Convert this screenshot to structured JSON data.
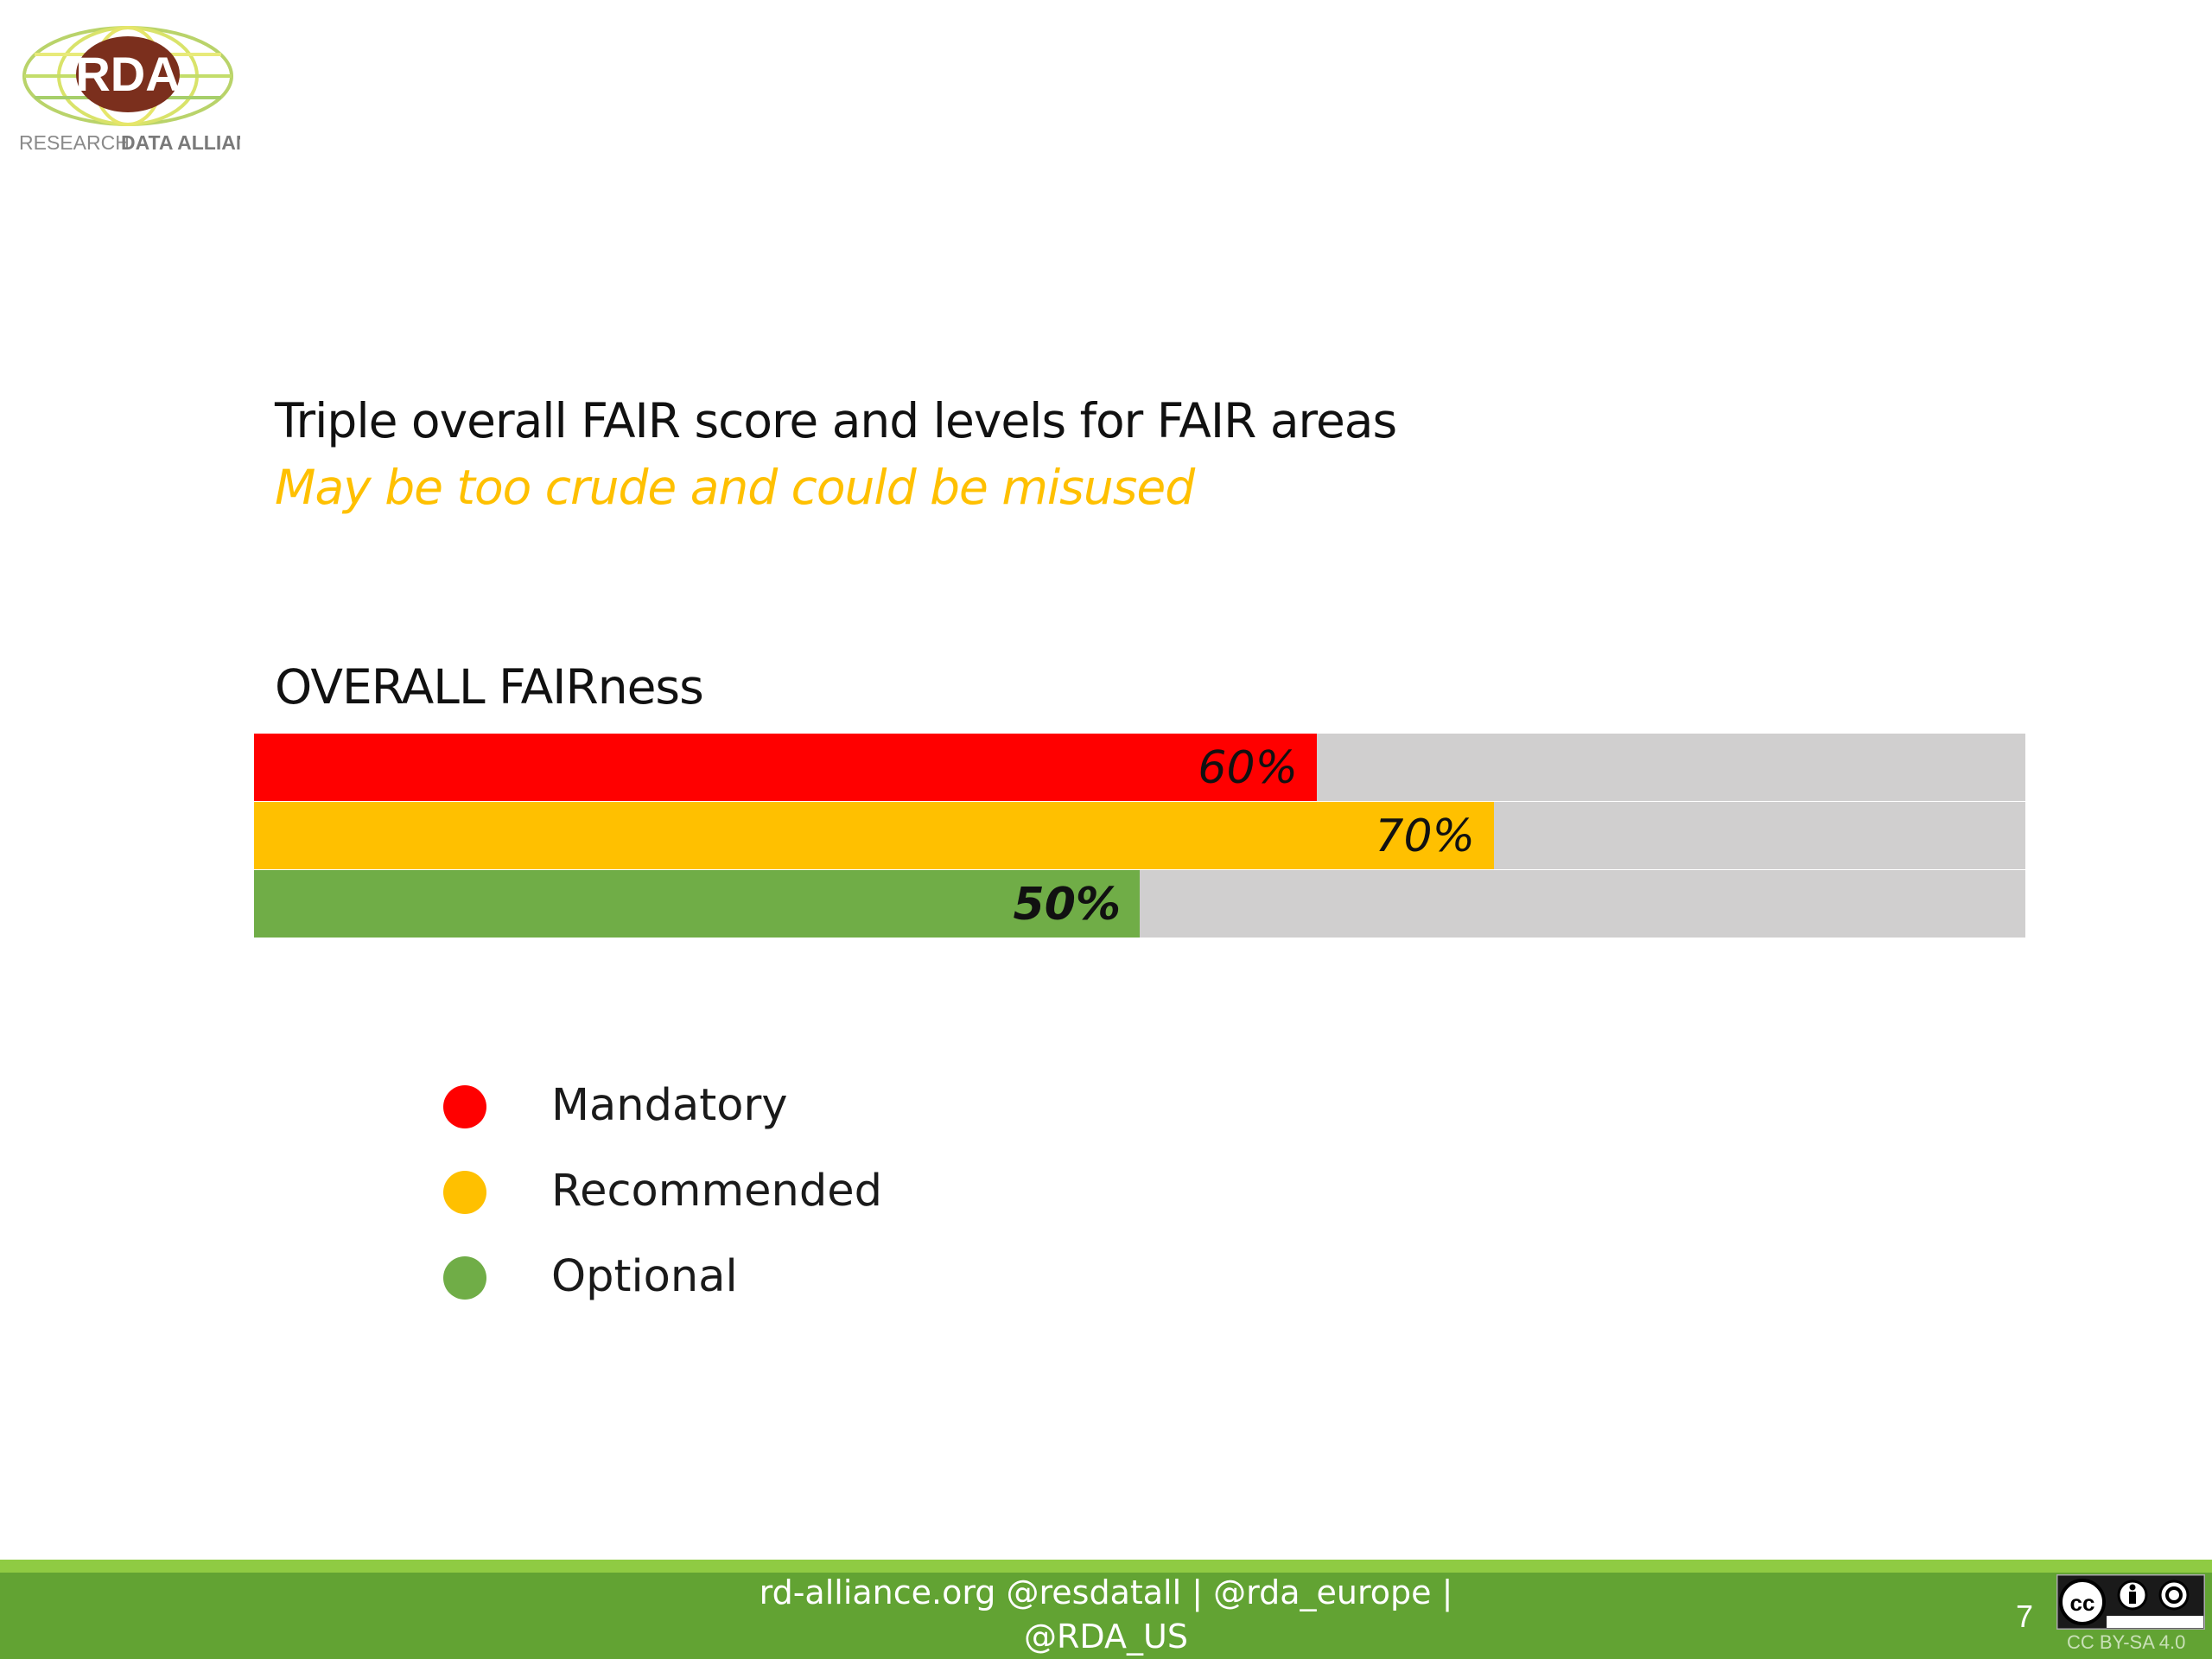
{
  "logo": {
    "text": "RDA",
    "subtitle_light": "RESEARCH",
    "subtitle_bold": "DATA ALLIANCE"
  },
  "heading": "Triple overall FAIR score and levels for FAIR areas",
  "subheading": "May be too crude and could be misused",
  "colors": {
    "mandatory": "#ff0000",
    "recommended": "#ffc000",
    "optional": "#70ad47",
    "track": "#d0cfcf",
    "subheading": "#ffc000",
    "footer": "#62a333",
    "footer_stripe": "#8fcb43"
  },
  "chart_data": {
    "type": "bar",
    "orientation": "horizontal",
    "title": "OVERALL FAIRness",
    "xlim": [
      0,
      100
    ],
    "unit": "%",
    "series": [
      {
        "name": "Mandatory",
        "value": 60,
        "label": "60%",
        "color": "#ff0000"
      },
      {
        "name": "Recommended",
        "value": 70,
        "label": "70%",
        "color": "#ffc000"
      },
      {
        "name": "Optional",
        "value": 50,
        "label": "50%",
        "color": "#70ad47"
      }
    ]
  },
  "legend": {
    "items": [
      {
        "label": "Mandatory",
        "color": "#ff0000"
      },
      {
        "label": "Recommended",
        "color": "#ffc000"
      },
      {
        "label": "Optional",
        "color": "#70ad47"
      }
    ]
  },
  "footer": {
    "line1": "rd-alliance.org     @resdatall | @rda_europe |",
    "line2": "@RDA_US",
    "page_number": "7",
    "license": "CC BY-SA 4.0"
  }
}
